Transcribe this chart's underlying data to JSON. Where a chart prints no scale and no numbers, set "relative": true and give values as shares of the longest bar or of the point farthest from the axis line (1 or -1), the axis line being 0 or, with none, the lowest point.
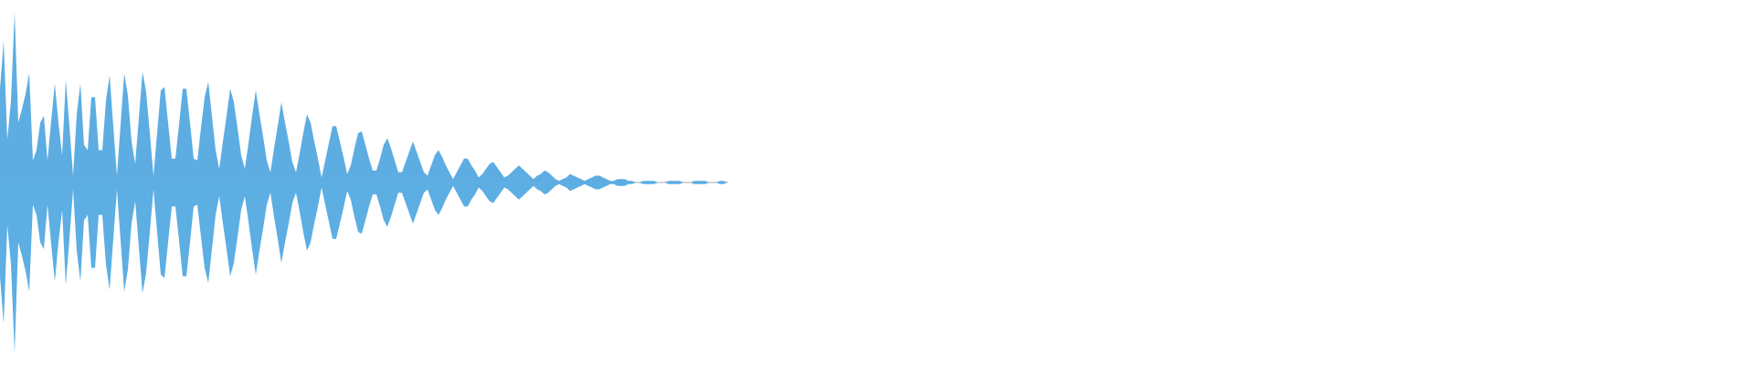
{
  "chart_data": {
    "type": "area",
    "relative": true,
    "categories": [
      null,
      null,
      null,
      null,
      null,
      null,
      null,
      null,
      null,
      null,
      null,
      null,
      null,
      null,
      null,
      null,
      null,
      null,
      null,
      null,
      null,
      null,
      null,
      null,
      null,
      null,
      null,
      null,
      null,
      null,
      null,
      null,
      null,
      null,
      null,
      null,
      null,
      null,
      null,
      null,
      null,
      null,
      null,
      null,
      null,
      null,
      null,
      null,
      null,
      null,
      null,
      null,
      null,
      null,
      null,
      null,
      null,
      null,
      null,
      null,
      null,
      null,
      null,
      null,
      null,
      null,
      null,
      null,
      null,
      null,
      null,
      null,
      null,
      null,
      null,
      null,
      null,
      null,
      null,
      null,
      null,
      null,
      null,
      null,
      null,
      null,
      null,
      null,
      null,
      null,
      null,
      null,
      null,
      null,
      null,
      null,
      null,
      null,
      null,
      null,
      null,
      null,
      null,
      null,
      null,
      null,
      null,
      null,
      null,
      null,
      null,
      null,
      null,
      null,
      null,
      null,
      null,
      null,
      null,
      null,
      null,
      null,
      null,
      null,
      null,
      null,
      null,
      null,
      null,
      null,
      null,
      null,
      null,
      null,
      null,
      null,
      null,
      null,
      null,
      null,
      null,
      null,
      null,
      null,
      null,
      null,
      null,
      null,
      null,
      null,
      null,
      null,
      null,
      null,
      null,
      null,
      null,
      null,
      null,
      null,
      null,
      null,
      null,
      null,
      null,
      null,
      null,
      null,
      null,
      null,
      null,
      null,
      null,
      null,
      null,
      null,
      null,
      null,
      null,
      null,
      null,
      null,
      null,
      null,
      null,
      null,
      null,
      null,
      null,
      null,
      null,
      null,
      null,
      null,
      null,
      null,
      null,
      null,
      null,
      null
    ],
    "series": [
      {
        "color": "#5dade2",
        "values": [
          0.55,
          0.83,
          0.25,
          0.48,
          1.0,
          0.35,
          0.43,
          0.52,
          0.64,
          0.13,
          0.19,
          0.35,
          0.39,
          0.13,
          0.36,
          0.58,
          0.35,
          0.16,
          0.6,
          0.33,
          0.04,
          0.4,
          0.58,
          0.22,
          0.19,
          0.5,
          0.5,
          0.19,
          0.19,
          0.48,
          0.63,
          0.33,
          0.04,
          0.34,
          0.64,
          0.51,
          0.24,
          0.11,
          0.38,
          0.65,
          0.53,
          0.29,
          0.04,
          0.29,
          0.54,
          0.56,
          0.35,
          0.14,
          0.14,
          0.34,
          0.55,
          0.55,
          0.35,
          0.14,
          0.13,
          0.32,
          0.5,
          0.59,
          0.39,
          0.19,
          0.08,
          0.24,
          0.39,
          0.55,
          0.47,
          0.32,
          0.16,
          0.08,
          0.23,
          0.39,
          0.54,
          0.4,
          0.27,
          0.13,
          0.06,
          0.2,
          0.33,
          0.47,
          0.35,
          0.24,
          0.12,
          0.06,
          0.17,
          0.29,
          0.4,
          0.35,
          0.24,
          0.14,
          0.03,
          0.13,
          0.23,
          0.33,
          0.33,
          0.24,
          0.15,
          0.05,
          0.1,
          0.2,
          0.29,
          0.3,
          0.22,
          0.14,
          0.07,
          0.07,
          0.14,
          0.22,
          0.26,
          0.2,
          0.13,
          0.06,
          0.06,
          0.12,
          0.18,
          0.24,
          0.18,
          0.12,
          0.06,
          0.04,
          0.1,
          0.16,
          0.19,
          0.15,
          0.1,
          0.06,
          0.02,
          0.06,
          0.1,
          0.14,
          0.14,
          0.1,
          0.07,
          0.03,
          0.05,
          0.08,
          0.11,
          0.12,
          0.09,
          0.06,
          0.03,
          0.04,
          0.06,
          0.08,
          0.1,
          0.08,
          0.06,
          0.04,
          0.02,
          0.04,
          0.05,
          0.07,
          0.06,
          0.04,
          0.02,
          0.01,
          0.02,
          0.03,
          0.05,
          0.04,
          0.03,
          0.02,
          0.01,
          0.02,
          0.03,
          0.04,
          0.04,
          0.03,
          0.02,
          0.01,
          0.01,
          0.02,
          0.02,
          0.02,
          0.01,
          0.01,
          0,
          0,
          0.01,
          0.01,
          0.01,
          0.01,
          0,
          0,
          0,
          0.01,
          0.01,
          0.01,
          0.01,
          0,
          0,
          0,
          0.01,
          0.01,
          0.01,
          0.01,
          0,
          0,
          0,
          0.01,
          0.01,
          0
        ]
      },
      {
        "color": "#5caee3",
        "values": [
          -0.55,
          -0.83,
          -0.25,
          -0.48,
          -1.0,
          -0.35,
          -0.43,
          -0.52,
          -0.64,
          -0.13,
          -0.19,
          -0.35,
          -0.39,
          -0.13,
          -0.36,
          -0.58,
          -0.35,
          -0.16,
          -0.6,
          -0.33,
          -0.04,
          -0.4,
          -0.58,
          -0.22,
          -0.19,
          -0.5,
          -0.5,
          -0.19,
          -0.19,
          -0.48,
          -0.63,
          -0.33,
          -0.04,
          -0.34,
          -0.64,
          -0.51,
          -0.24,
          -0.11,
          -0.38,
          -0.65,
          -0.53,
          -0.29,
          -0.04,
          -0.29,
          -0.54,
          -0.56,
          -0.35,
          -0.14,
          -0.14,
          -0.34,
          -0.55,
          -0.55,
          -0.35,
          -0.14,
          -0.13,
          -0.32,
          -0.5,
          -0.59,
          -0.39,
          -0.19,
          -0.08,
          -0.24,
          -0.39,
          -0.55,
          -0.47,
          -0.32,
          -0.16,
          -0.08,
          -0.23,
          -0.39,
          -0.54,
          -0.4,
          -0.27,
          -0.13,
          -0.06,
          -0.2,
          -0.33,
          -0.47,
          -0.35,
          -0.24,
          -0.12,
          -0.06,
          -0.17,
          -0.29,
          -0.4,
          -0.35,
          -0.24,
          -0.14,
          -0.03,
          -0.13,
          -0.23,
          -0.33,
          -0.33,
          -0.24,
          -0.15,
          -0.05,
          -0.1,
          -0.2,
          -0.29,
          -0.3,
          -0.22,
          -0.14,
          -0.07,
          -0.07,
          -0.14,
          -0.22,
          -0.26,
          -0.2,
          -0.13,
          -0.06,
          -0.06,
          -0.12,
          -0.18,
          -0.24,
          -0.18,
          -0.12,
          -0.06,
          -0.04,
          -0.1,
          -0.16,
          -0.19,
          -0.15,
          -0.1,
          -0.06,
          -0.02,
          -0.06,
          -0.1,
          -0.14,
          -0.14,
          -0.1,
          -0.07,
          -0.03,
          -0.05,
          -0.08,
          -0.11,
          -0.12,
          -0.09,
          -0.06,
          -0.03,
          -0.04,
          -0.06,
          -0.08,
          -0.1,
          -0.08,
          -0.06,
          -0.04,
          -0.02,
          -0.04,
          -0.05,
          -0.07,
          -0.06,
          -0.04,
          -0.02,
          -0.01,
          -0.02,
          -0.03,
          -0.05,
          -0.04,
          -0.03,
          -0.02,
          -0.01,
          -0.02,
          -0.03,
          -0.04,
          -0.04,
          -0.03,
          -0.02,
          -0.01,
          -0.01,
          -0.02,
          -0.02,
          -0.02,
          -0.01,
          -0.01,
          0,
          0,
          -0.01,
          -0.01,
          -0.01,
          -0.01,
          0,
          0,
          0,
          -0.01,
          -0.01,
          -0.01,
          -0.01,
          0,
          0,
          0,
          -0.01,
          -0.01,
          -0.01,
          -0.01,
          0,
          0,
          0,
          -0.01,
          -0.01,
          0
        ]
      }
    ]
  }
}
